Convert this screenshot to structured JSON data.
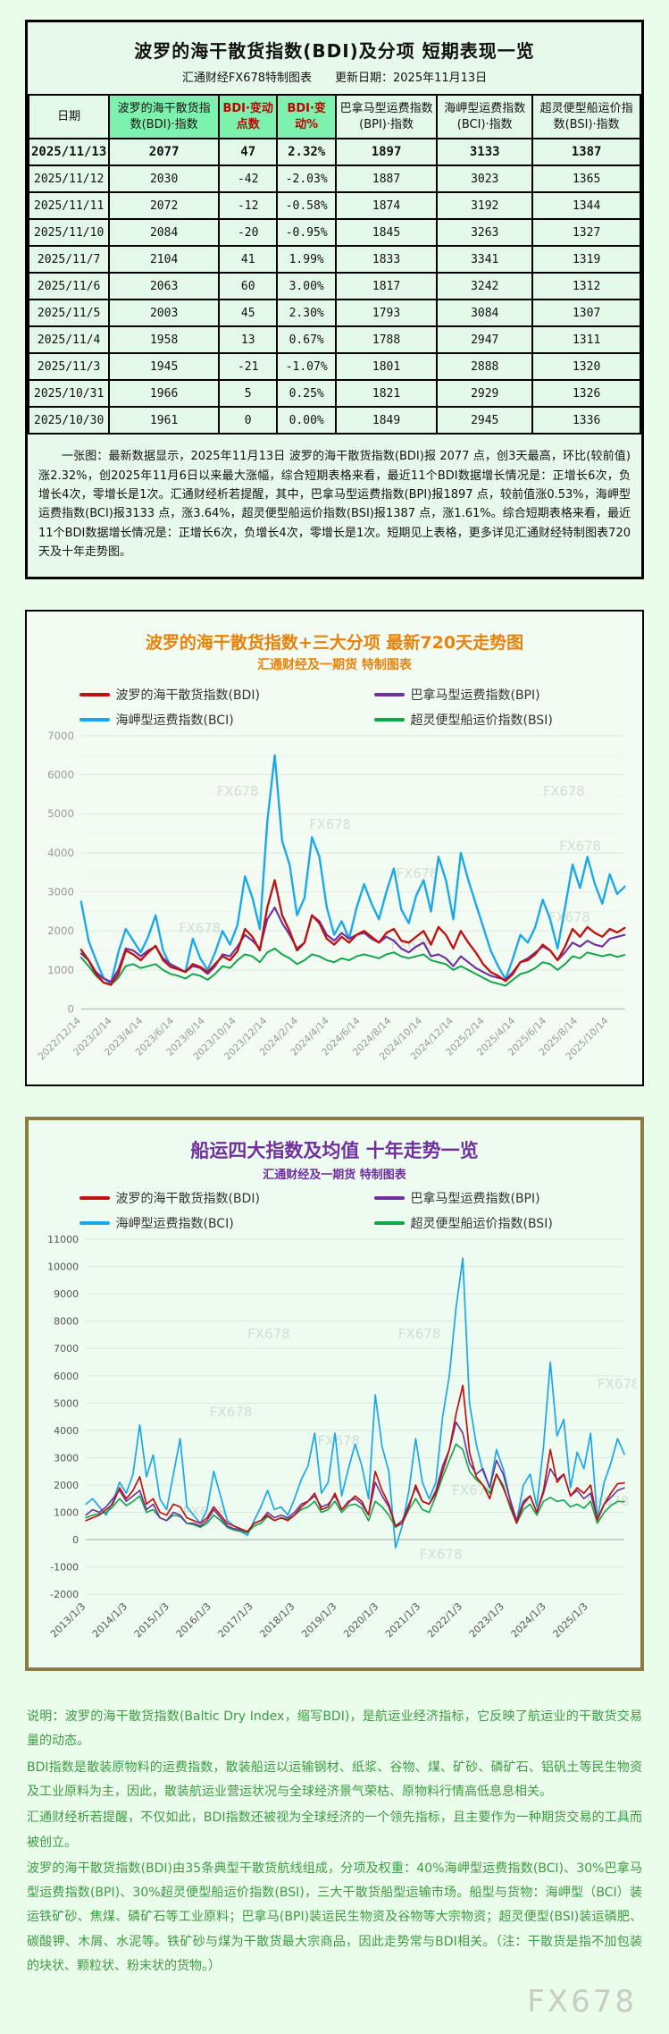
{
  "header": {
    "title": "波罗的海干散货指数(BDI)及分项  短期表现一览",
    "subtitle": "汇通财经FX678特制图表　　更新日期：2025年11月13日"
  },
  "table": {
    "columns": [
      {
        "label": "日期",
        "highlight": false,
        "red": false
      },
      {
        "label": "波罗的海干散货指数(BDI)·指数",
        "highlight": true,
        "red": false
      },
      {
        "label": "BDI·变动点数",
        "highlight": true,
        "red": true
      },
      {
        "label": "BDI·变动%",
        "highlight": true,
        "red": true
      },
      {
        "label": "巴拿马型运费指数(BPI)·指数",
        "highlight": false,
        "red": false
      },
      {
        "label": "海岬型运费指数(BCI)·指数",
        "highlight": false,
        "red": false
      },
      {
        "label": "超灵便型船运价指数(BSI)·指数",
        "highlight": false,
        "red": false
      }
    ],
    "rows": [
      [
        "2025/11/13",
        "2077",
        "47",
        "2.32%",
        "1897",
        "3133",
        "1387"
      ],
      [
        "2025/11/12",
        "2030",
        "-42",
        "-2.03%",
        "1887",
        "3023",
        "1365"
      ],
      [
        "2025/11/11",
        "2072",
        "-12",
        "-0.58%",
        "1874",
        "3192",
        "1344"
      ],
      [
        "2025/11/10",
        "2084",
        "-20",
        "-0.95%",
        "1845",
        "3263",
        "1327"
      ],
      [
        "2025/11/7",
        "2104",
        "41",
        "1.99%",
        "1833",
        "3341",
        "1319"
      ],
      [
        "2025/11/6",
        "2063",
        "60",
        "3.00%",
        "1817",
        "3242",
        "1312"
      ],
      [
        "2025/11/5",
        "2003",
        "45",
        "2.30%",
        "1793",
        "3084",
        "1307"
      ],
      [
        "2025/11/4",
        "1958",
        "13",
        "0.67%",
        "1788",
        "2947",
        "1311"
      ],
      [
        "2025/11/3",
        "1945",
        "-21",
        "-1.07%",
        "1801",
        "2888",
        "1320"
      ],
      [
        "2025/10/31",
        "1966",
        "5",
        "0.25%",
        "1821",
        "2929",
        "1326"
      ],
      [
        "2025/10/30",
        "1961",
        "0",
        "0.00%",
        "1849",
        "2945",
        "1336"
      ]
    ],
    "note": "一张图：最新数据显示，2025年11月13日 波罗的海干散货指数(BDI)报 2077 点，创3天最高，环比(较前值)涨2.32%，创2025年11月6日以来最大涨幅，综合短期表格来看，最近11个BDI数据增长情况是：正增长6次，负增长4次，零增长是1次。汇通财经析若提醒，其中，巴拿马型运费指数(BPI)报1897 点，较前值涨0.53%，海岬型运费指数(BCI)报3133 点，涨3.64%，超灵便型船运价指数(BSI)报1387 点，涨1.61%。综合短期表格来看，最近11个BDI数据增长情况是：正增长6次，负增长4次，零增长是1次。短期见上表格，更多详见汇通财经特制图表720天及十年走势图。"
  },
  "watermark": "FX678",
  "chart_data": [
    {
      "type": "line",
      "title": "波罗的海干散货指数+三大分项  最新720天走势图",
      "subtitle": "汇通财经及一期货 特制图表",
      "ylim": [
        0,
        7000
      ],
      "ytick": 1000,
      "grid": true,
      "legend_position": "top",
      "label_span": 0.971,
      "x_labels": [
        "2022/12/14",
        "2023/2/14",
        "2023/4/14",
        "2023/6/14",
        "2023/8/14",
        "2023/10/14",
        "2023/12/14",
        "2024/2/14",
        "2024/4/14",
        "2024/6/14",
        "2024/8/14",
        "2024/10/14",
        "2024/12/14",
        "2025/2/14",
        "2025/4/14",
        "2025/6/14",
        "2025/8/14",
        "2025/10/14"
      ],
      "draw_order": [
        2,
        3,
        1,
        0
      ],
      "series": [
        {
          "name": "波罗的海干散货指数(BDI)",
          "color": "#c11212",
          "width": 2.4,
          "values": [
            1520,
            1250,
            900,
            680,
            620,
            900,
            1500,
            1400,
            1250,
            1450,
            1620,
            1250,
            1080,
            1020,
            950,
            1150,
            1080,
            950,
            1150,
            1350,
            1250,
            1480,
            2050,
            1850,
            1500,
            2600,
            3300,
            2400,
            2000,
            1500,
            1700,
            2400,
            2200,
            1800,
            1650,
            1850,
            1700,
            1900,
            2000,
            1850,
            1700,
            1950,
            2050,
            1750,
            1700,
            1850,
            2000,
            1650,
            2100,
            1900,
            1550,
            2000,
            1700,
            1450,
            1150,
            950,
            850,
            715,
            900,
            1200,
            1250,
            1400,
            1650,
            1500,
            1250,
            1600,
            2050,
            1850,
            2100,
            1950,
            1850,
            2050,
            1961,
            2077
          ]
        },
        {
          "name": "巴拿马型运费指数(BPI)",
          "color": "#7030a0",
          "width": 2.2,
          "values": [
            1420,
            1250,
            950,
            780,
            700,
            1000,
            1550,
            1500,
            1350,
            1500,
            1600,
            1300,
            1150,
            1050,
            950,
            1100,
            1050,
            900,
            1100,
            1400,
            1350,
            1600,
            1900,
            1750,
            1550,
            2300,
            2600,
            2200,
            1900,
            1550,
            1700,
            2400,
            2250,
            1900,
            1750,
            1950,
            1800,
            1900,
            1950,
            1800,
            1700,
            1850,
            1750,
            1550,
            1450,
            1600,
            1700,
            1350,
            1400,
            1300,
            1100,
            1350,
            1200,
            1050,
            950,
            850,
            800,
            750,
            950,
            1200,
            1300,
            1450,
            1600,
            1500,
            1250,
            1450,
            1700,
            1600,
            1750,
            1650,
            1600,
            1800,
            1849,
            1897
          ]
        },
        {
          "name": "海岬型运费指数(BCI)",
          "color": "#1ba8e8",
          "width": 2.4,
          "values": [
            2750,
            1750,
            1250,
            800,
            650,
            1450,
            2050,
            1750,
            1450,
            1850,
            2400,
            1500,
            1100,
            1050,
            950,
            1800,
            1300,
            1000,
            1450,
            2000,
            1650,
            2150,
            3400,
            2850,
            2050,
            4800,
            6500,
            4300,
            3700,
            2400,
            2850,
            4400,
            3900,
            2600,
            1900,
            2250,
            1800,
            2600,
            3200,
            2700,
            2300,
            3000,
            3600,
            2550,
            2200,
            2900,
            3300,
            2500,
            3900,
            3300,
            2300,
            4000,
            3300,
            2700,
            2100,
            1500,
            1100,
            760,
            1300,
            1900,
            1700,
            2100,
            2800,
            2300,
            1550,
            2600,
            3700,
            3100,
            3900,
            3200,
            2700,
            3450,
            2945,
            3133
          ]
        },
        {
          "name": "超灵便型船运价指数(BSI)",
          "color": "#10a54a",
          "width": 2.0,
          "values": [
            1320,
            1100,
            850,
            680,
            620,
            800,
            1100,
            1150,
            1050,
            1100,
            1150,
            1000,
            900,
            850,
            780,
            900,
            850,
            750,
            900,
            1100,
            1050,
            1250,
            1400,
            1350,
            1200,
            1450,
            1550,
            1400,
            1300,
            1150,
            1250,
            1400,
            1350,
            1250,
            1200,
            1300,
            1250,
            1350,
            1400,
            1350,
            1300,
            1400,
            1450,
            1350,
            1300,
            1350,
            1400,
            1250,
            1200,
            1150,
            1000,
            1100,
            1000,
            900,
            800,
            700,
            650,
            600,
            750,
            900,
            950,
            1050,
            1200,
            1150,
            1000,
            1150,
            1350,
            1300,
            1450,
            1400,
            1350,
            1400,
            1336,
            1387
          ]
        }
      ]
    },
    {
      "type": "line",
      "title": "船运四大指数及均值 十年走势一览",
      "subtitle": "汇通财经及一期货 特制图表",
      "ylim": [
        -2000,
        11000
      ],
      "ytick": 1000,
      "grid": true,
      "legend_position": "top",
      "label_span": 0.933,
      "x_labels": [
        "2013/1/3",
        "2014/1/3",
        "2015/1/3",
        "2016/1/3",
        "2017/1/3",
        "2018/1/3",
        "2019/1/3",
        "2020/1/3",
        "2021/1/3",
        "2022/1/3",
        "2023/1/3",
        "2024/1/3",
        "2025/1/3"
      ],
      "draw_order": [
        2,
        3,
        1,
        0
      ],
      "series": [
        {
          "name": "波罗的海干散货指数(BDI)",
          "color": "#c11212",
          "width": 1.7,
          "values": [
            700,
            800,
            900,
            1100,
            1300,
            1900,
            1500,
            1800,
            2300,
            1300,
            1500,
            1000,
            900,
            1300,
            1200,
            800,
            700,
            600,
            800,
            1200,
            900,
            600,
            500,
            400,
            290,
            600,
            700,
            900,
            700,
            800,
            700,
            900,
            1200,
            1400,
            1700,
            1100,
            1200,
            1700,
            1100,
            1350,
            1600,
            1400,
            900,
            2500,
            1800,
            1300,
            500,
            600,
            1200,
            2000,
            1400,
            1300,
            1700,
            2500,
            3300,
            4600,
            5650,
            3200,
            2300,
            2000,
            1500,
            2400,
            1900,
            1300,
            600,
            1300,
            1600,
            1000,
            1800,
            3300,
            2100,
            2400,
            1600,
            1900,
            1700,
            2000,
            715,
            1300,
            1700,
            2050,
            2077
          ]
        },
        {
          "name": "巴拿马型运费指数(BPI)",
          "color": "#7030a0",
          "width": 1.6,
          "values": [
            900,
            1100,
            1000,
            1200,
            1500,
            1800,
            1400,
            1600,
            1800,
            1100,
            1300,
            800,
            700,
            1000,
            900,
            600,
            600,
            500,
            700,
            1100,
            800,
            500,
            400,
            350,
            300,
            600,
            700,
            1000,
            800,
            900,
            800,
            1000,
            1300,
            1400,
            1600,
            1200,
            1300,
            1600,
            1100,
            1400,
            1500,
            1300,
            900,
            2100,
            1600,
            1200,
            500,
            700,
            1300,
            1900,
            1400,
            1300,
            1800,
            2700,
            3300,
            4300,
            3900,
            2800,
            2400,
            2600,
            1900,
            2900,
            2400,
            1500,
            700,
            1400,
            1600,
            1000,
            1700,
            2600,
            2200,
            2400,
            1600,
            1800,
            1500,
            1700,
            750,
            1300,
            1550,
            1800,
            1897
          ]
        },
        {
          "name": "海岬型运费指数(BCI)",
          "color": "#1ba8e8",
          "width": 1.7,
          "values": [
            1300,
            1500,
            1200,
            900,
            1400,
            2100,
            1700,
            2400,
            4200,
            2300,
            3100,
            1500,
            1100,
            2400,
            3700,
            1200,
            900,
            600,
            1100,
            2500,
            1600,
            700,
            500,
            300,
            160,
            700,
            1200,
            1800,
            1100,
            1200,
            900,
            1500,
            2200,
            2700,
            3900,
            1700,
            2100,
            3900,
            1600,
            2600,
            3500,
            2700,
            1500,
            5300,
            3400,
            2500,
            -300,
            500,
            1800,
            3700,
            2100,
            1500,
            2100,
            4500,
            6000,
            8500,
            10300,
            5000,
            3500,
            2500,
            1900,
            3300,
            2600,
            1500,
            650,
            2000,
            2400,
            1200,
            3400,
            6500,
            3800,
            4400,
            1900,
            3200,
            2600,
            3900,
            760,
            2100,
            2800,
            3700,
            3133
          ]
        },
        {
          "name": "超灵便型船运价指数(BSI)",
          "color": "#10a54a",
          "width": 1.6,
          "values": [
            800,
            900,
            950,
            1000,
            1200,
            1500,
            1250,
            1400,
            1600,
            1000,
            1100,
            800,
            700,
            900,
            850,
            600,
            550,
            450,
            600,
            900,
            700,
            450,
            350,
            300,
            250,
            500,
            600,
            850,
            700,
            800,
            750,
            900,
            1100,
            1200,
            1400,
            1000,
            1100,
            1400,
            1000,
            1250,
            1300,
            1150,
            700,
            1400,
            1200,
            900,
            450,
            600,
            1100,
            1500,
            1100,
            1000,
            1600,
            2300,
            2900,
            3500,
            3300,
            2500,
            2200,
            2000,
            1700,
            2400,
            2000,
            1200,
            600,
            1100,
            1300,
            900,
            1400,
            1550,
            1400,
            1450,
            1200,
            1300,
            1150,
            1400,
            600,
            1000,
            1250,
            1400,
            1387
          ]
        }
      ]
    }
  ],
  "footer": {
    "paragraphs": [
      "说明：波罗的海干散货指数(Baltic Dry Index，缩写BDI)，是航运业经济指标，它反映了航运业的干散货交易量的动态。",
      "BDI指数是散装原物料的运费指数，散装船运以运输钢材、纸浆、谷物、煤、矿砂、磷矿石、铝矾土等民生物资及工业原料为主，因此，散装航运业营运状况与全球经济景气荣枯、原物料行情高低息息相关。",
      "汇通财经析若提醒，不仅如此，BDI指数还被视为全球经济的一个领先指标，且主要作为一种期货交易的工具而被创立。",
      "波罗的海干散货指数(BDI)由35条典型干散货航线组成，分项及权重：40%海岬型运费指数(BCI)、30%巴拿马型运费指数(BPI)、30%超灵便型船运价指数(BSI)，三大干散货船型运输市场。船型与货物：海岬型（BCI）装运铁矿砂、焦煤、磷矿石等工业原料；巴拿马(BPI)装运民生物资及谷物等大宗物资；超灵便型(BSI)装运磷肥、碳酸钾、木屑、水泥等。铁矿砂与煤为干散货最大宗商品，因此走势常与BDI相关。（注：干散货是指不加包装的块状、颗粒状、粉末状的货物。）"
    ]
  }
}
